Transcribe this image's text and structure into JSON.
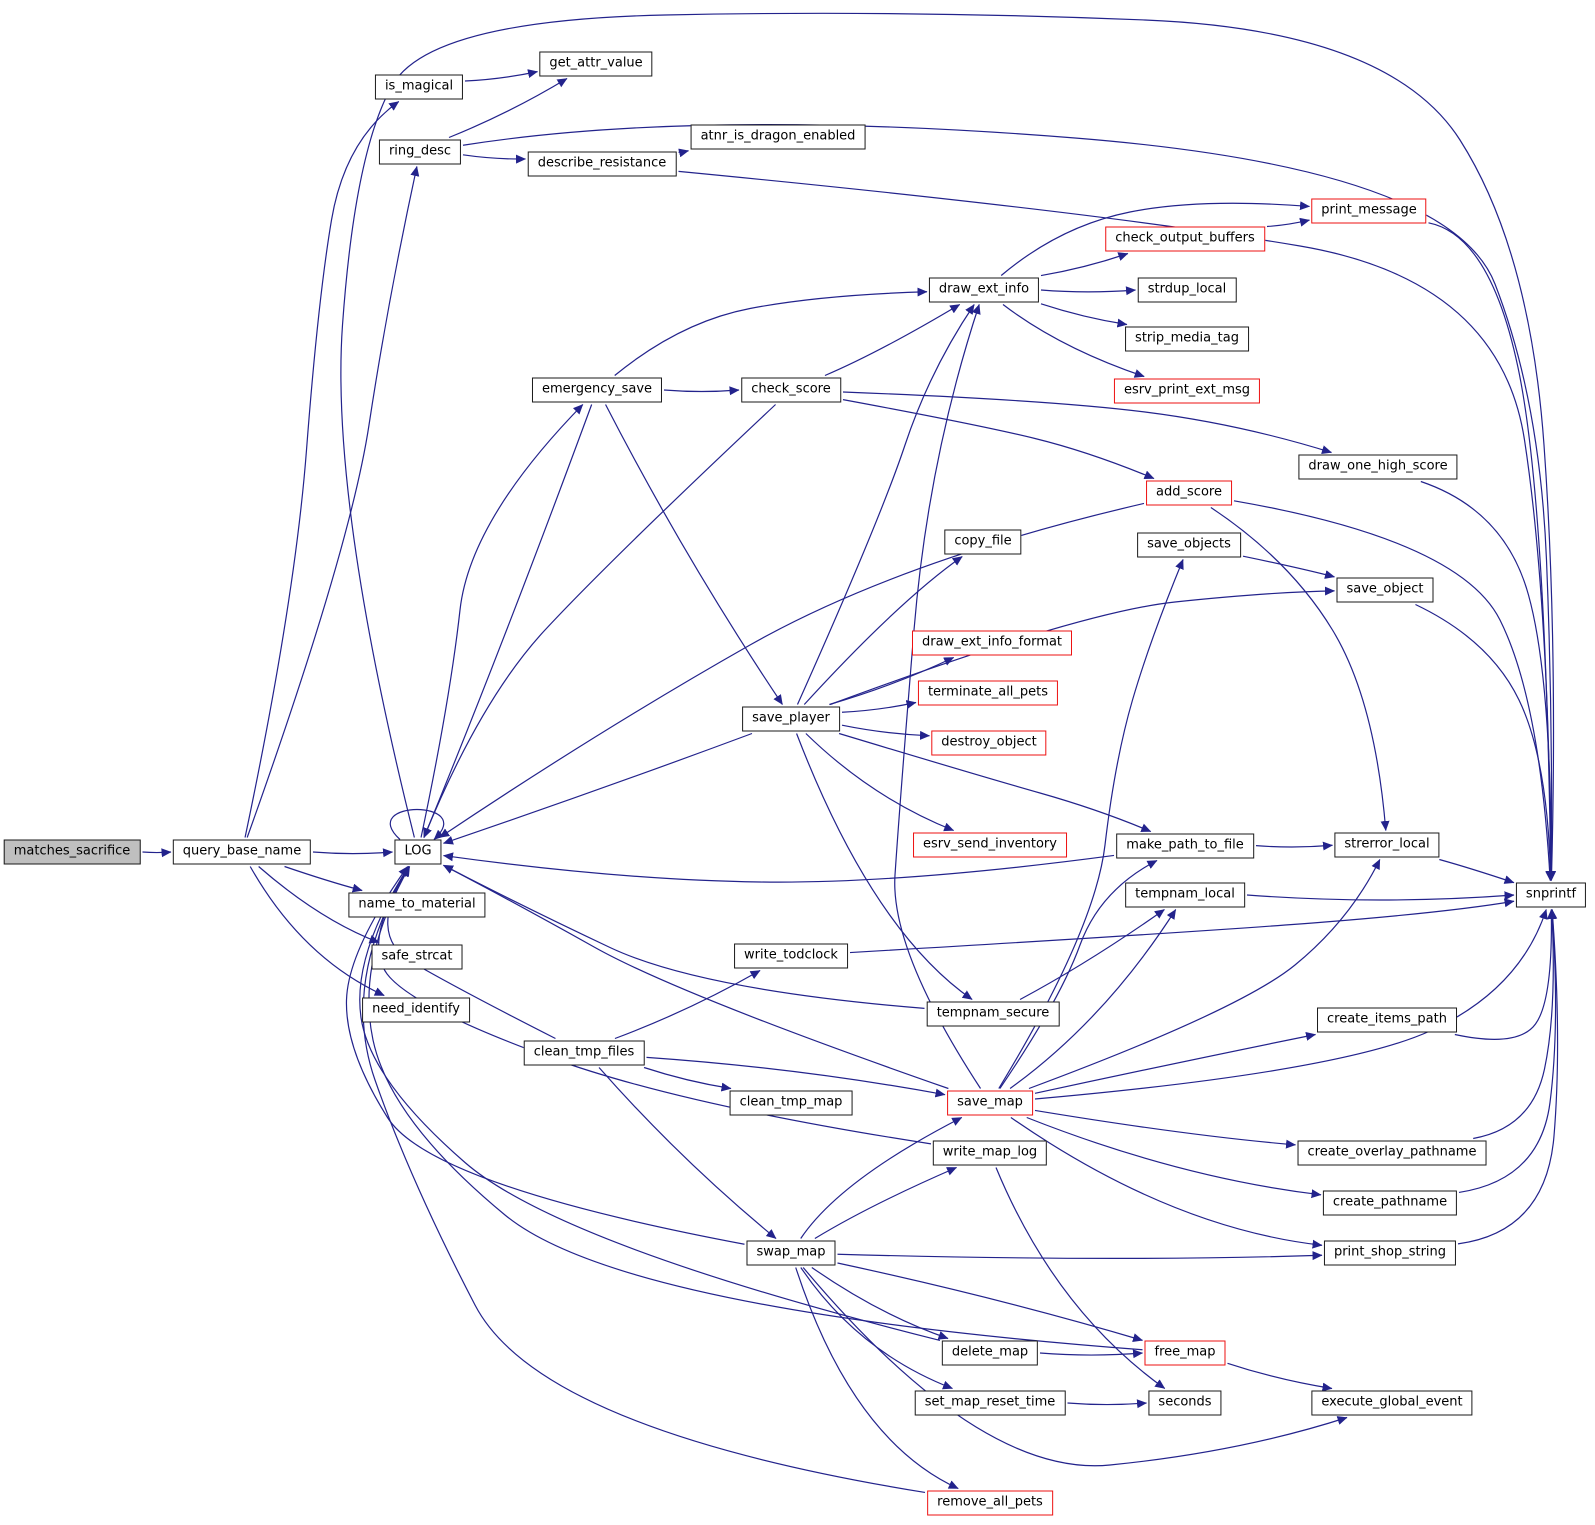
{
  "diagram": {
    "kind": "call-graph",
    "focus_function": "matches_sacrifice",
    "colors": {
      "edge": "#23238c",
      "node_border": "#1a1a1a",
      "highlight_border": "#ee1111",
      "focus_fill": "#bfbfbf",
      "background": "#ffffff"
    },
    "nodes": [
      {
        "id": "matches_sacrifice",
        "label": "matches_sacrifice",
        "style": "focus"
      },
      {
        "id": "query_base_name",
        "label": "query_base_name",
        "style": "plain"
      },
      {
        "id": "LOG",
        "label": "LOG",
        "style": "plain"
      },
      {
        "id": "is_magical",
        "label": "is_magical",
        "style": "plain"
      },
      {
        "id": "get_attr_value",
        "label": "get_attr_value",
        "style": "plain"
      },
      {
        "id": "ring_desc",
        "label": "ring_desc",
        "style": "plain"
      },
      {
        "id": "describe_resistance",
        "label": "describe_resistance",
        "style": "plain"
      },
      {
        "id": "atnr_is_dragon_enabled",
        "label": "atnr_is_dragon_enabled",
        "style": "plain"
      },
      {
        "id": "print_message",
        "label": "print_message",
        "style": "red"
      },
      {
        "id": "check_output_buffers",
        "label": "check_output_buffers",
        "style": "red"
      },
      {
        "id": "draw_ext_info",
        "label": "draw_ext_info",
        "style": "plain"
      },
      {
        "id": "strdup_local",
        "label": "strdup_local",
        "style": "plain"
      },
      {
        "id": "strip_media_tag",
        "label": "strip_media_tag",
        "style": "plain"
      },
      {
        "id": "esrv_print_ext_msg",
        "label": "esrv_print_ext_msg",
        "style": "red"
      },
      {
        "id": "emergency_save",
        "label": "emergency_save",
        "style": "plain"
      },
      {
        "id": "check_score",
        "label": "check_score",
        "style": "plain"
      },
      {
        "id": "draw_one_high_score",
        "label": "draw_one_high_score",
        "style": "plain"
      },
      {
        "id": "add_score",
        "label": "add_score",
        "style": "red"
      },
      {
        "id": "save_objects",
        "label": "save_objects",
        "style": "plain"
      },
      {
        "id": "copy_file",
        "label": "copy_file",
        "style": "plain"
      },
      {
        "id": "save_object",
        "label": "save_object",
        "style": "plain"
      },
      {
        "id": "draw_ext_info_format",
        "label": "draw_ext_info_format",
        "style": "red"
      },
      {
        "id": "terminate_all_pets",
        "label": "terminate_all_pets",
        "style": "red"
      },
      {
        "id": "save_player",
        "label": "save_player",
        "style": "plain"
      },
      {
        "id": "destroy_object",
        "label": "destroy_object",
        "style": "red"
      },
      {
        "id": "esrv_send_inventory",
        "label": "esrv_send_inventory",
        "style": "red"
      },
      {
        "id": "make_path_to_file",
        "label": "make_path_to_file",
        "style": "plain"
      },
      {
        "id": "strerror_local",
        "label": "strerror_local",
        "style": "plain"
      },
      {
        "id": "snprintf",
        "label": "snprintf",
        "style": "plain"
      },
      {
        "id": "tempnam_local",
        "label": "tempnam_local",
        "style": "plain"
      },
      {
        "id": "name_to_material",
        "label": "name_to_material",
        "style": "plain"
      },
      {
        "id": "safe_strcat",
        "label": "safe_strcat",
        "style": "plain"
      },
      {
        "id": "write_todclock",
        "label": "write_todclock",
        "style": "plain"
      },
      {
        "id": "need_identify",
        "label": "need_identify",
        "style": "plain"
      },
      {
        "id": "tempnam_secure",
        "label": "tempnam_secure",
        "style": "plain"
      },
      {
        "id": "create_items_path",
        "label": "create_items_path",
        "style": "plain"
      },
      {
        "id": "clean_tmp_files",
        "label": "clean_tmp_files",
        "style": "plain"
      },
      {
        "id": "save_map",
        "label": "save_map",
        "style": "red"
      },
      {
        "id": "clean_tmp_map",
        "label": "clean_tmp_map",
        "style": "plain"
      },
      {
        "id": "create_overlay_pathname",
        "label": "create_overlay_pathname",
        "style": "plain"
      },
      {
        "id": "write_map_log",
        "label": "write_map_log",
        "style": "plain"
      },
      {
        "id": "create_pathname",
        "label": "create_pathname",
        "style": "plain"
      },
      {
        "id": "print_shop_string",
        "label": "print_shop_string",
        "style": "plain"
      },
      {
        "id": "swap_map",
        "label": "swap_map",
        "style": "plain"
      },
      {
        "id": "delete_map",
        "label": "delete_map",
        "style": "plain"
      },
      {
        "id": "free_map",
        "label": "free_map",
        "style": "red"
      },
      {
        "id": "set_map_reset_time",
        "label": "set_map_reset_time",
        "style": "plain"
      },
      {
        "id": "seconds",
        "label": "seconds",
        "style": "plain"
      },
      {
        "id": "execute_global_event",
        "label": "execute_global_event",
        "style": "plain"
      },
      {
        "id": "remove_all_pets",
        "label": "remove_all_pets",
        "style": "red"
      }
    ],
    "edges": [
      [
        "matches_sacrifice",
        "query_base_name"
      ],
      [
        "query_base_name",
        "LOG"
      ],
      [
        "query_base_name",
        "ring_desc"
      ],
      [
        "query_base_name",
        "is_magical"
      ],
      [
        "query_base_name",
        "name_to_material"
      ],
      [
        "query_base_name",
        "safe_strcat"
      ],
      [
        "query_base_name",
        "need_identify"
      ],
      [
        "is_magical",
        "get_attr_value"
      ],
      [
        "ring_desc",
        "get_attr_value"
      ],
      [
        "ring_desc",
        "describe_resistance"
      ],
      [
        "ring_desc",
        "snprintf"
      ],
      [
        "describe_resistance",
        "atnr_is_dragon_enabled"
      ],
      [
        "describe_resistance",
        "snprintf"
      ],
      [
        "LOG",
        "LOG"
      ],
      [
        "LOG",
        "emergency_save"
      ],
      [
        "LOG",
        "snprintf"
      ],
      [
        "emergency_save",
        "check_score"
      ],
      [
        "emergency_save",
        "save_player"
      ],
      [
        "emergency_save",
        "draw_ext_info"
      ],
      [
        "emergency_save",
        "LOG"
      ],
      [
        "check_score",
        "draw_ext_info"
      ],
      [
        "check_score",
        "add_score"
      ],
      [
        "check_score",
        "draw_one_high_score"
      ],
      [
        "check_score",
        "LOG"
      ],
      [
        "add_score",
        "snprintf"
      ],
      [
        "add_score",
        "strerror_local"
      ],
      [
        "add_score",
        "LOG"
      ],
      [
        "draw_ext_info",
        "print_message"
      ],
      [
        "draw_ext_info",
        "check_output_buffers"
      ],
      [
        "draw_ext_info",
        "strdup_local"
      ],
      [
        "draw_ext_info",
        "strip_media_tag"
      ],
      [
        "draw_ext_info",
        "esrv_print_ext_msg"
      ],
      [
        "check_output_buffers",
        "print_message"
      ],
      [
        "print_message",
        "snprintf"
      ],
      [
        "save_player",
        "draw_ext_info"
      ],
      [
        "save_player",
        "copy_file"
      ],
      [
        "save_player",
        "draw_ext_info_format"
      ],
      [
        "save_player",
        "terminate_all_pets"
      ],
      [
        "save_player",
        "destroy_object"
      ],
      [
        "save_player",
        "esrv_send_inventory"
      ],
      [
        "save_player",
        "make_path_to_file"
      ],
      [
        "save_player",
        "tempnam_secure"
      ],
      [
        "save_player",
        "save_object"
      ],
      [
        "save_player",
        "LOG"
      ],
      [
        "save_objects",
        "save_object"
      ],
      [
        "save_map",
        "save_objects"
      ],
      [
        "save_map",
        "LOG"
      ],
      [
        "save_map",
        "draw_ext_info"
      ],
      [
        "save_map",
        "make_path_to_file"
      ],
      [
        "save_map",
        "tempnam_local"
      ],
      [
        "save_map",
        "create_items_path"
      ],
      [
        "save_map",
        "create_overlay_pathname"
      ],
      [
        "save_map",
        "create_pathname"
      ],
      [
        "save_map",
        "print_shop_string"
      ],
      [
        "save_map",
        "strerror_local"
      ],
      [
        "save_map",
        "snprintf"
      ],
      [
        "make_path_to_file",
        "strerror_local"
      ],
      [
        "make_path_to_file",
        "LOG"
      ],
      [
        "strerror_local",
        "snprintf"
      ],
      [
        "tempnam_local",
        "snprintf"
      ],
      [
        "tempnam_secure",
        "tempnam_local"
      ],
      [
        "tempnam_secure",
        "LOG"
      ],
      [
        "save_object",
        "snprintf"
      ],
      [
        "draw_one_high_score",
        "snprintf"
      ],
      [
        "clean_tmp_files",
        "write_todclock"
      ],
      [
        "clean_tmp_files",
        "clean_tmp_map"
      ],
      [
        "clean_tmp_files",
        "save_map"
      ],
      [
        "clean_tmp_files",
        "swap_map"
      ],
      [
        "clean_tmp_files",
        "LOG"
      ],
      [
        "write_todclock",
        "snprintf"
      ],
      [
        "write_map_log",
        "LOG"
      ],
      [
        "write_map_log",
        "seconds"
      ],
      [
        "swap_map",
        "LOG"
      ],
      [
        "swap_map",
        "save_map"
      ],
      [
        "swap_map",
        "write_map_log"
      ],
      [
        "swap_map",
        "delete_map"
      ],
      [
        "swap_map",
        "set_map_reset_time"
      ],
      [
        "swap_map",
        "free_map"
      ],
      [
        "swap_map",
        "remove_all_pets"
      ],
      [
        "swap_map",
        "execute_global_event"
      ],
      [
        "swap_map",
        "print_shop_string"
      ],
      [
        "delete_map",
        "free_map"
      ],
      [
        "delete_map",
        "LOG"
      ],
      [
        "free_map",
        "execute_global_event"
      ],
      [
        "free_map",
        "LOG"
      ],
      [
        "remove_all_pets",
        "LOG"
      ],
      [
        "set_map_reset_time",
        "seconds"
      ],
      [
        "create_items_path",
        "snprintf"
      ],
      [
        "create_overlay_pathname",
        "snprintf"
      ],
      [
        "create_pathname",
        "snprintf"
      ],
      [
        "print_shop_string",
        "snprintf"
      ]
    ]
  }
}
